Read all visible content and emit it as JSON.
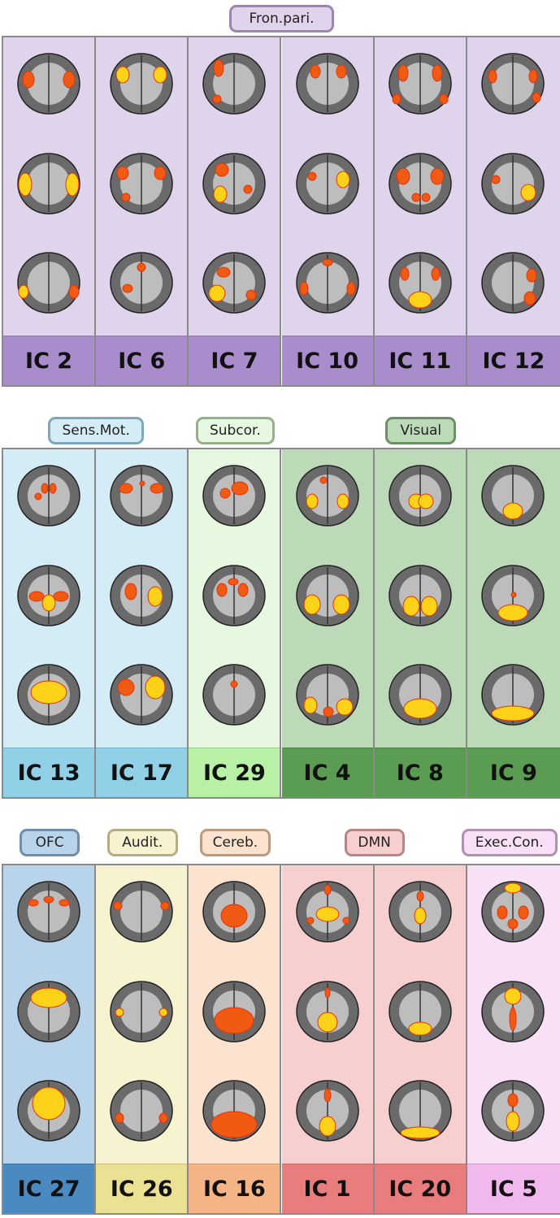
{
  "rows": [
    {
      "groups": [
        {
          "label": "Fron.pari.",
          "bg": "#e0d3ec",
          "cap": "#a88ccb",
          "border": "#9b86ad",
          "span": [
            0,
            5
          ]
        }
      ],
      "cells": [
        {
          "id": "IC 2",
          "group": 0,
          "blobs": "fp2"
        },
        {
          "id": "IC 6",
          "group": 0,
          "blobs": "fp6"
        },
        {
          "id": "IC 7",
          "group": 0,
          "blobs": "fp7"
        },
        {
          "id": "IC 10",
          "group": 0,
          "blobs": "fp10"
        },
        {
          "id": "IC 11",
          "group": 0,
          "blobs": "fp11"
        },
        {
          "id": "IC 12",
          "group": 0,
          "blobs": "fp12"
        }
      ]
    },
    {
      "groups": [
        {
          "label": "Sens.Mot.",
          "bg": "#d4ecf6",
          "cap": "#91d1e8",
          "border": "#7fa8b7",
          "span": [
            0,
            1
          ]
        },
        {
          "label": "Subcor.",
          "bg": "#e6f8e0",
          "cap": "#b8f0a6",
          "border": "#96b08c",
          "span": [
            2,
            2
          ]
        },
        {
          "label": "Visual",
          "bg": "#bcd9b8",
          "cap": "#5a9c52",
          "border": "#6e8d6a",
          "span": [
            3,
            5
          ]
        }
      ],
      "cells": [
        {
          "id": "IC 13",
          "group": 0,
          "blobs": "sm13"
        },
        {
          "id": "IC 17",
          "group": 0,
          "blobs": "sm17"
        },
        {
          "id": "IC 29",
          "group": 1,
          "blobs": "sc29"
        },
        {
          "id": "IC 4",
          "group": 2,
          "blobs": "v4"
        },
        {
          "id": "IC 8",
          "group": 2,
          "blobs": "v8"
        },
        {
          "id": "IC 9",
          "group": 2,
          "blobs": "v9"
        }
      ]
    },
    {
      "groups": [
        {
          "label": "OFC",
          "bg": "#b8d4ea",
          "cap": "#4a8ac0",
          "border": "#6f8ea8",
          "span": [
            0,
            0
          ]
        },
        {
          "label": "Audit.",
          "bg": "#f7f2d0",
          "cap": "#ebe192",
          "border": "#b5ad86",
          "span": [
            1,
            1
          ]
        },
        {
          "label": "Cereb.",
          "bg": "#fbe3cf",
          "cap": "#f4b486",
          "border": "#bb9a7f",
          "span": [
            2,
            2
          ]
        },
        {
          "label": "DMN",
          "bg": "#f7cfcf",
          "cap": "#e97d7d",
          "border": "#b88585",
          "span": [
            3,
            4
          ]
        },
        {
          "label": "Exec.Con.",
          "bg": "#f8e0f6",
          "cap": "#f0b8ec",
          "border": "#b38fb0",
          "span": [
            5,
            5
          ]
        }
      ],
      "cells": [
        {
          "id": "IC 27",
          "group": 0,
          "blobs": "ofc27"
        },
        {
          "id": "IC 26",
          "group": 1,
          "blobs": "au26"
        },
        {
          "id": "IC 16",
          "group": 2,
          "blobs": "cb16"
        },
        {
          "id": "IC 1",
          "group": 3,
          "blobs": "dmn1"
        },
        {
          "id": "IC 20",
          "group": 3,
          "blobs": "dmn20"
        },
        {
          "id": "IC 5",
          "group": 4,
          "blobs": "ec5"
        }
      ]
    }
  ]
}
